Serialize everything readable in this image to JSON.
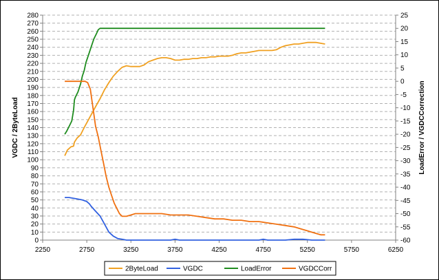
{
  "chart_data": {
    "type": "line",
    "title": "",
    "xlabel": "",
    "ylabel": "VGDC / 2ByteLoad",
    "y2label": "LoadError / VGDCCorrection",
    "xlim": [
      2250,
      6250
    ],
    "ylim": [
      0,
      280
    ],
    "y2lim": [
      -60,
      25
    ],
    "xticks": [
      2250,
      2750,
      3250,
      3750,
      4250,
      4750,
      5250,
      5750,
      6250
    ],
    "yticks": [
      0,
      10,
      20,
      30,
      40,
      50,
      60,
      70,
      80,
      90,
      100,
      110,
      120,
      130,
      140,
      150,
      160,
      170,
      180,
      190,
      200,
      210,
      220,
      230,
      240,
      250,
      260,
      270,
      280
    ],
    "y2ticks": [
      -60,
      -55,
      -50,
      -45,
      -40,
      -35,
      -30,
      -25,
      -20,
      -15,
      -10,
      -5,
      0,
      5,
      10,
      15,
      20,
      25
    ],
    "grid": "horizontal-dashed",
    "legend_position": "bottom",
    "series": [
      {
        "name": "2ByteLoad",
        "axis": "left",
        "color": "#f0a020",
        "x": [
          2500,
          2530,
          2570,
          2600,
          2610,
          2640,
          2680,
          2720,
          2760,
          2800,
          2850,
          2900,
          2950,
          3000,
          3050,
          3100,
          3150,
          3200,
          3250,
          3300,
          3350,
          3400,
          3450,
          3500,
          3550,
          3600,
          3650,
          3700,
          3750,
          3800,
          3850,
          3900,
          3950,
          4000,
          4050,
          4100,
          4150,
          4200,
          4250,
          4300,
          4350,
          4400,
          4450,
          4500,
          4550,
          4600,
          4650,
          4700,
          4750,
          4800,
          4850,
          4900,
          4950,
          5000,
          5050,
          5100,
          5150,
          5200,
          5250,
          5300,
          5350,
          5400,
          5450
        ],
        "values": [
          105,
          112,
          116,
          117,
          122,
          127,
          131,
          140,
          148,
          156,
          166,
          176,
          187,
          196,
          204,
          210,
          215,
          217,
          216,
          216,
          216,
          218,
          222,
          224,
          226,
          227,
          227,
          226,
          224,
          224,
          225,
          225,
          226,
          226,
          227,
          227,
          228,
          228,
          229,
          229,
          229,
          230,
          232,
          233,
          233,
          234,
          235,
          236,
          236,
          236,
          236,
          237,
          240,
          242,
          243,
          244,
          244,
          245,
          246,
          246,
          246,
          245,
          244
        ]
      },
      {
        "name": "VGDC",
        "axis": "left",
        "color": "#3060e0",
        "x": [
          2500,
          2550,
          2600,
          2650,
          2700,
          2750,
          2780,
          2800,
          2850,
          2900,
          2950,
          3000,
          3050,
          3100,
          3150,
          3200,
          3300,
          3500,
          3700,
          3750,
          3800,
          4000,
          4500,
          4700,
          4750,
          4800,
          5000,
          5100,
          5200,
          5300,
          5450
        ],
        "values": [
          53,
          53,
          52,
          51,
          50,
          48,
          45,
          42,
          36,
          30,
          20,
          10,
          5,
          2,
          1,
          0,
          0,
          0,
          0,
          1,
          0,
          0,
          0,
          0,
          1,
          0,
          0,
          1,
          1,
          0,
          0
        ]
      },
      {
        "name": "LoadError",
        "axis": "right",
        "color": "#1e8c1e",
        "x": [
          2500,
          2520,
          2550,
          2580,
          2600,
          2610,
          2620,
          2650,
          2680,
          2700,
          2720,
          2740,
          2770,
          2800,
          2830,
          2860,
          2880,
          2900,
          2950,
          3000,
          3500,
          4000,
          4500,
          5000,
          5450
        ],
        "values": [
          -20,
          -19,
          -17,
          -15,
          -11,
          -7,
          -6,
          -4,
          -1,
          2,
          4,
          7,
          10,
          13,
          16,
          18,
          19.5,
          20,
          20,
          20,
          20,
          20,
          20,
          20,
          20
        ]
      },
      {
        "name": "VGDCCorr",
        "axis": "right",
        "color": "#f07010",
        "x": [
          2500,
          2550,
          2600,
          2650,
          2700,
          2730,
          2760,
          2790,
          2820,
          2850,
          2880,
          2910,
          2940,
          2970,
          3000,
          3030,
          3060,
          3090,
          3120,
          3150,
          3200,
          3250,
          3300,
          3400,
          3500,
          3600,
          3700,
          3800,
          3900,
          4000,
          4100,
          4200,
          4300,
          4400,
          4500,
          4600,
          4700,
          4800,
          4900,
          5000,
          5100,
          5200,
          5250,
          5300,
          5350,
          5400,
          5450
        ],
        "values": [
          0,
          0,
          0,
          0,
          0,
          0,
          -0.5,
          -3,
          -10,
          -17,
          -21,
          -26,
          -31,
          -36,
          -40,
          -43,
          -46,
          -48,
          -50,
          -51,
          -51,
          -50.5,
          -50,
          -50,
          -50,
          -50,
          -50.5,
          -50.5,
          -50.5,
          -51,
          -51.5,
          -52,
          -52,
          -52.5,
          -52.5,
          -53,
          -53,
          -53.5,
          -54,
          -54.5,
          -55,
          -56,
          -56.5,
          -57,
          -57.5,
          -58,
          -58
        ]
      }
    ]
  }
}
